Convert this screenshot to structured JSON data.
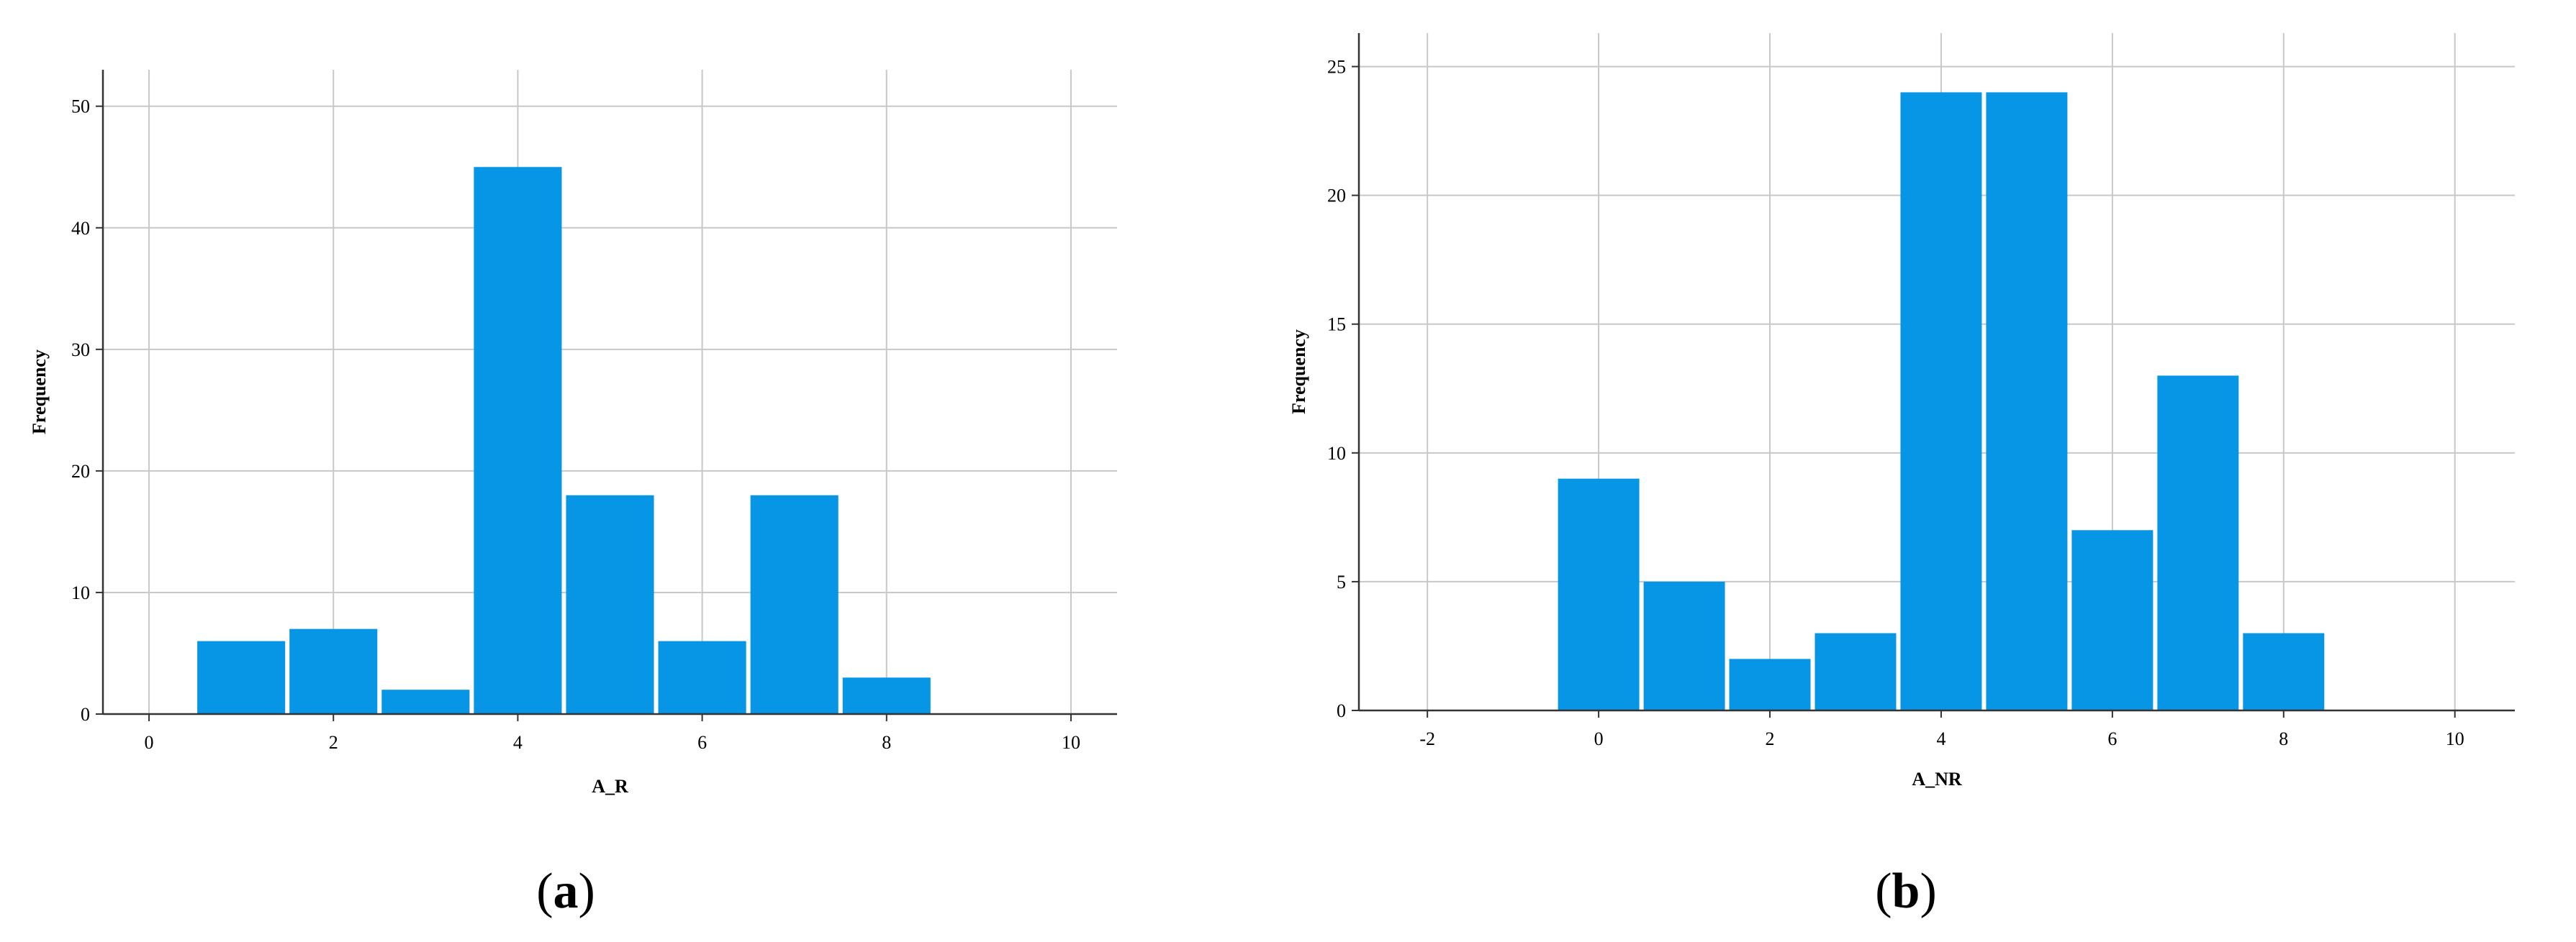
{
  "chart_data": [
    {
      "type": "bar",
      "panel_label": "(a)",
      "panel_label_parts": [
        "(",
        "a",
        ")"
      ],
      "xlabel": "A_R",
      "ylabel": "Frequency",
      "xlim": [
        -0.5,
        10.5
      ],
      "ylim": [
        0,
        53
      ],
      "xticks": [
        0,
        2,
        4,
        6,
        8,
        10
      ],
      "yticks": [
        0,
        10,
        20,
        30,
        40,
        50
      ],
      "bar_width": 1,
      "bars": [
        {
          "x": 1,
          "value": 6
        },
        {
          "x": 2,
          "value": 7
        },
        {
          "x": 3,
          "value": 2
        },
        {
          "x": 4,
          "value": 45
        },
        {
          "x": 5,
          "value": 18
        },
        {
          "x": 6,
          "value": 6
        },
        {
          "x": 7,
          "value": 18
        },
        {
          "x": 8,
          "value": 3
        }
      ],
      "grid": true,
      "bar_color": "#0795e6"
    },
    {
      "type": "bar",
      "panel_label": "(b)",
      "panel_label_parts": [
        "(",
        "b",
        ")"
      ],
      "xlabel": "A_NR",
      "ylabel": "Frequency",
      "xlim": [
        -2.8,
        10.7
      ],
      "ylim": [
        0,
        26.3
      ],
      "xticks": [
        -2,
        0,
        2,
        4,
        6,
        8,
        10
      ],
      "yticks": [
        0,
        5,
        10,
        15,
        20,
        25
      ],
      "bar_width": 1,
      "bars": [
        {
          "x": 0,
          "value": 9
        },
        {
          "x": 1,
          "value": 5
        },
        {
          "x": 2,
          "value": 2
        },
        {
          "x": 3,
          "value": 3
        },
        {
          "x": 4,
          "value": 24
        },
        {
          "x": 5,
          "value": 24
        },
        {
          "x": 6,
          "value": 7
        },
        {
          "x": 7,
          "value": 13
        },
        {
          "x": 8,
          "value": 3
        }
      ],
      "grid": true,
      "bar_color": "#0795e6"
    }
  ]
}
